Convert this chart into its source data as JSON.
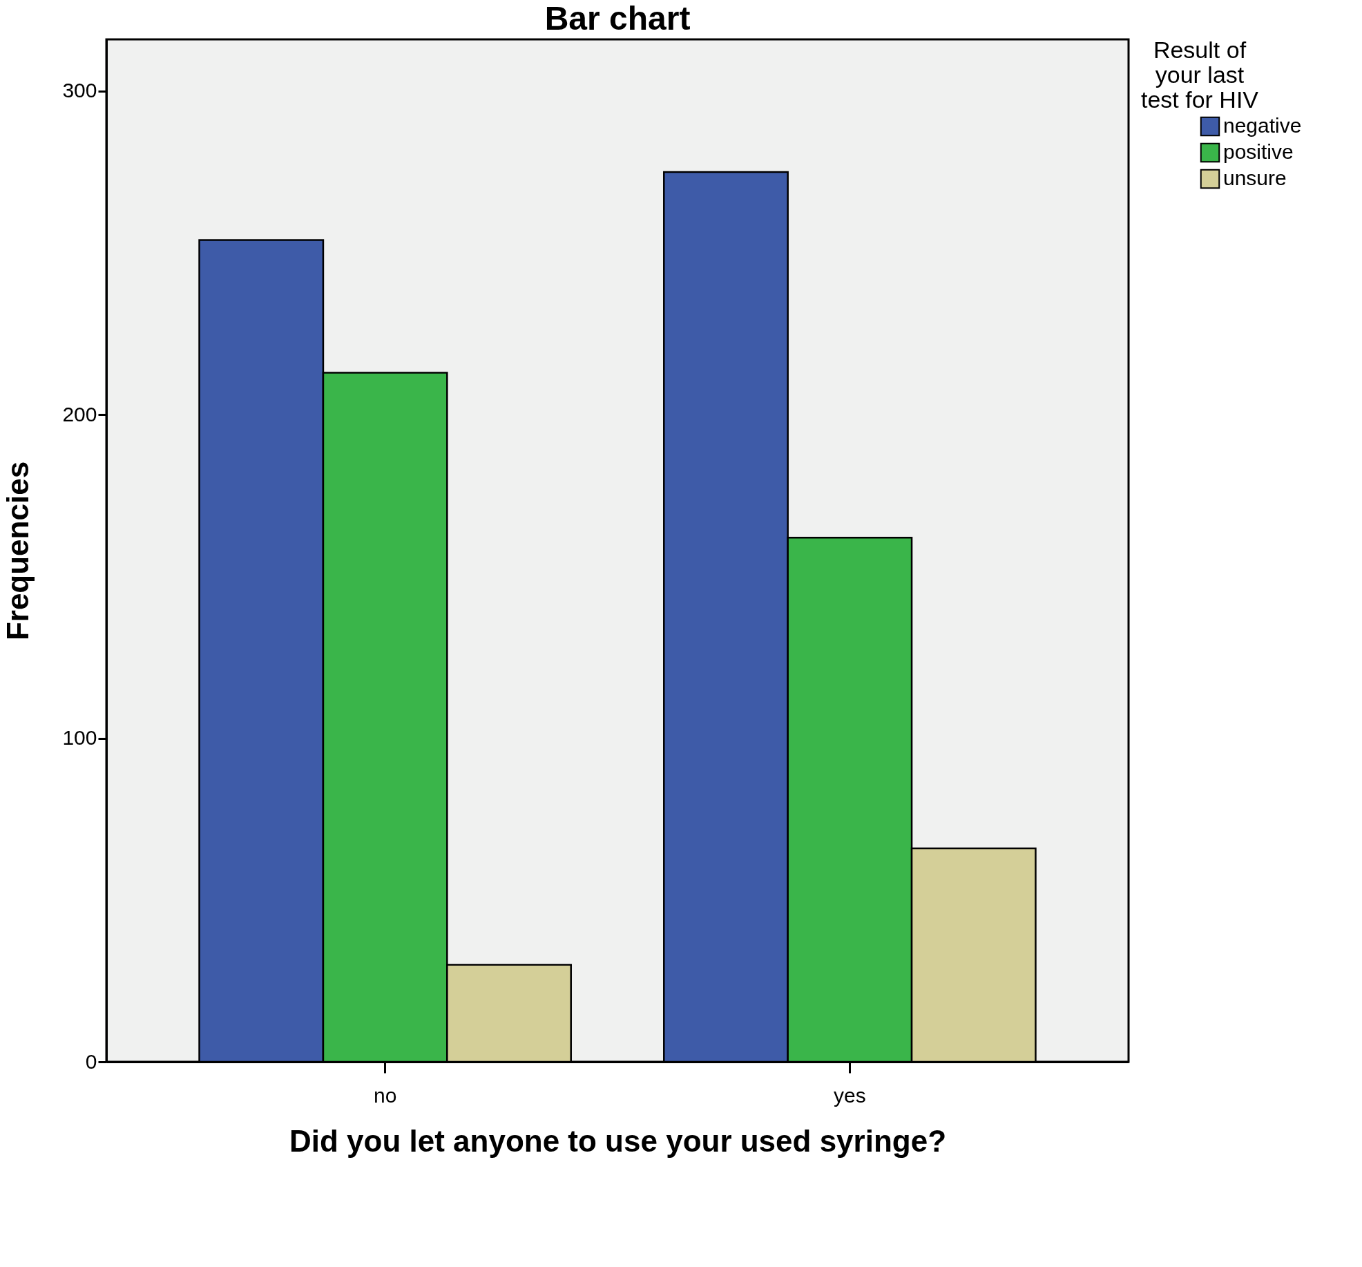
{
  "chart_data": {
    "type": "bar",
    "title": "Bar chart",
    "xlabel": "Did you let anyone to use your used syringe?",
    "ylabel": "Frequencies",
    "legend_title": "Result of your last test for HIV",
    "categories": [
      "no",
      "yes"
    ],
    "series": [
      {
        "name": "negative",
        "color": "#3e5ba8",
        "values": [
          254,
          275
        ]
      },
      {
        "name": "positive",
        "color": "#3ab54a",
        "values": [
          213,
          162
        ]
      },
      {
        "name": "unsure",
        "color": "#d4cf98",
        "values": [
          30,
          66
        ]
      }
    ],
    "ylim": [
      0,
      316
    ],
    "yticks": [
      0,
      100,
      200,
      300
    ],
    "grid": false,
    "legend": "top right"
  }
}
